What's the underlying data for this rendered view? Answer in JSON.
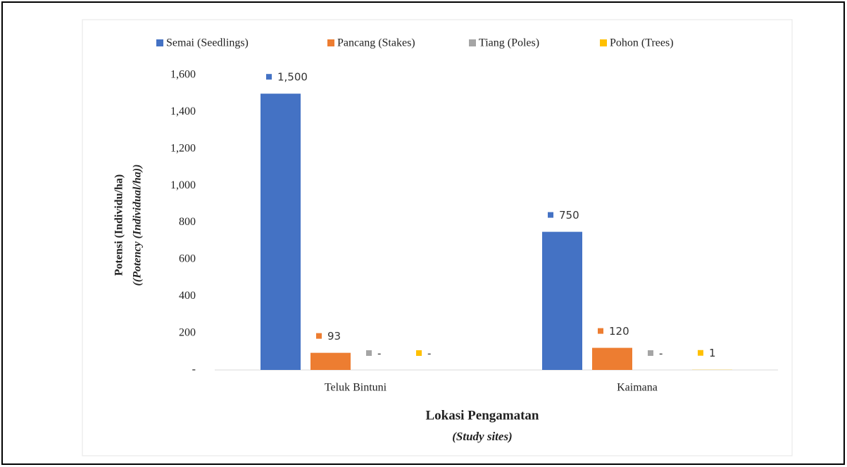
{
  "chart_data": {
    "type": "bar",
    "categories": [
      "Teluk Bintuni",
      "Kaimana"
    ],
    "series": [
      {
        "name": "Semai (Seedlings)",
        "color": "#4472c4",
        "values": [
          1500,
          750
        ],
        "value_labels": [
          "1,500",
          "750"
        ]
      },
      {
        "name": "Pancang (Stakes)",
        "color": "#ed7d31",
        "values": [
          93,
          120
        ],
        "value_labels": [
          "93",
          "120"
        ]
      },
      {
        "name": "Tiang (Poles)",
        "color": "#a5a5a5",
        "values": [
          0,
          0
        ],
        "value_labels": [
          "-",
          "-"
        ]
      },
      {
        "name": "Pohon (Trees)",
        "color": "#ffc000",
        "values": [
          0,
          1
        ],
        "value_labels": [
          "-",
          "1"
        ]
      }
    ],
    "ylabel": [
      "Potensi (Individu/ha)",
      "((Potency (Individual/ha))"
    ],
    "xlabel": [
      "Lokasi Pengamatan",
      "(Study sites)"
    ],
    "ylim": [
      0,
      1600
    ],
    "yticks": [
      {
        "value": 0,
        "label": "-"
      },
      200,
      400,
      600,
      800,
      {
        "value": 1000,
        "label": "1,000"
      },
      {
        "value": 1200,
        "label": "1,200"
      },
      {
        "value": 1400,
        "label": "1,400"
      },
      {
        "value": 1600,
        "label": "1,600"
      }
    ],
    "legend": "top"
  }
}
